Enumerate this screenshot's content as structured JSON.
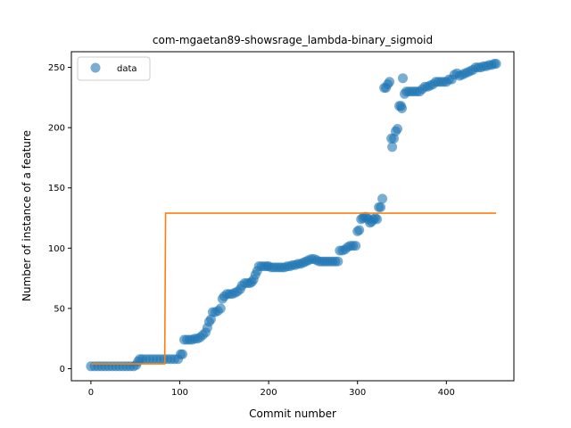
{
  "chart_data": {
    "type": "scatter",
    "title": "com-mgaetan89-showsrage_lambda-binary_sigmoid",
    "xlabel": "Commit number",
    "ylabel": "Number of instance of a feature",
    "xlim": [
      -22,
      476
    ],
    "ylim": [
      -10,
      263
    ],
    "xticks": [
      0,
      100,
      200,
      300,
      400
    ],
    "yticks": [
      0,
      50,
      100,
      150,
      200,
      250
    ],
    "grid": false,
    "legend": {
      "placement": "top-left",
      "entries": [
        "data"
      ]
    },
    "colors": {
      "data": "#1f77b4",
      "fit": "#ff7f0e"
    },
    "series": [
      {
        "name": "data",
        "kind": "scatter",
        "points": [
          [
            0,
            2
          ],
          [
            4,
            2
          ],
          [
            8,
            2
          ],
          [
            12,
            2
          ],
          [
            16,
            2
          ],
          [
            20,
            2
          ],
          [
            24,
            2
          ],
          [
            28,
            2
          ],
          [
            32,
            2
          ],
          [
            36,
            2
          ],
          [
            40,
            2
          ],
          [
            44,
            2
          ],
          [
            48,
            2
          ],
          [
            51,
            3
          ],
          [
            53,
            6
          ],
          [
            55,
            8
          ],
          [
            58,
            8
          ],
          [
            62,
            8
          ],
          [
            66,
            8
          ],
          [
            70,
            8
          ],
          [
            74,
            8
          ],
          [
            78,
            8
          ],
          [
            82,
            8
          ],
          [
            86,
            8
          ],
          [
            90,
            8
          ],
          [
            94,
            8
          ],
          [
            98,
            8
          ],
          [
            101,
            12
          ],
          [
            103,
            12
          ],
          [
            105,
            24
          ],
          [
            108,
            24
          ],
          [
            111,
            24
          ],
          [
            114,
            24
          ],
          [
            117,
            25
          ],
          [
            120,
            25
          ],
          [
            123,
            26
          ],
          [
            126,
            28
          ],
          [
            129,
            30
          ],
          [
            131,
            34
          ],
          [
            133,
            39
          ],
          [
            135,
            41
          ],
          [
            137,
            47
          ],
          [
            140,
            47
          ],
          [
            143,
            48
          ],
          [
            146,
            50
          ],
          [
            148,
            58
          ],
          [
            150,
            60
          ],
          [
            153,
            62
          ],
          [
            156,
            62
          ],
          [
            159,
            62
          ],
          [
            162,
            63
          ],
          [
            165,
            64
          ],
          [
            168,
            66
          ],
          [
            170,
            69
          ],
          [
            173,
            71
          ],
          [
            176,
            71
          ],
          [
            179,
            71
          ],
          [
            181,
            72
          ],
          [
            183,
            74
          ],
          [
            185,
            78
          ],
          [
            187,
            81
          ],
          [
            189,
            85
          ],
          [
            192,
            85
          ],
          [
            195,
            85
          ],
          [
            198,
            85
          ],
          [
            200,
            85
          ],
          [
            203,
            84
          ],
          [
            206,
            84
          ],
          [
            209,
            84
          ],
          [
            212,
            84
          ],
          [
            215,
            84
          ],
          [
            218,
            84
          ],
          [
            221,
            85
          ],
          [
            224,
            85
          ],
          [
            227,
            86
          ],
          [
            230,
            86
          ],
          [
            233,
            87
          ],
          [
            236,
            87
          ],
          [
            239,
            88
          ],
          [
            242,
            89
          ],
          [
            245,
            90
          ],
          [
            248,
            91
          ],
          [
            251,
            91
          ],
          [
            254,
            90
          ],
          [
            257,
            89
          ],
          [
            260,
            89
          ],
          [
            263,
            89
          ],
          [
            266,
            89
          ],
          [
            269,
            89
          ],
          [
            272,
            89
          ],
          [
            275,
            89
          ],
          [
            278,
            89
          ],
          [
            280,
            98
          ],
          [
            283,
            98
          ],
          [
            286,
            99
          ],
          [
            289,
            101
          ],
          [
            292,
            102
          ],
          [
            295,
            102
          ],
          [
            298,
            102
          ],
          [
            300,
            114
          ],
          [
            302,
            115
          ],
          [
            304,
            124
          ],
          [
            306,
            125
          ],
          [
            308,
            126
          ],
          [
            310,
            126
          ],
          [
            312,
            124
          ],
          [
            314,
            121
          ],
          [
            316,
            122
          ],
          [
            318,
            124
          ],
          [
            320,
            125
          ],
          [
            322,
            124
          ],
          [
            324,
            134
          ],
          [
            326,
            134
          ],
          [
            328,
            141
          ],
          [
            330,
            233
          ],
          [
            332,
            233
          ],
          [
            334,
            236
          ],
          [
            336,
            238
          ],
          [
            338,
            191
          ],
          [
            339,
            184
          ],
          [
            341,
            191
          ],
          [
            343,
            197
          ],
          [
            345,
            199
          ],
          [
            347,
            218
          ],
          [
            349,
            218
          ],
          [
            350,
            216
          ],
          [
            351,
            241
          ],
          [
            353,
            228
          ],
          [
            355,
            230
          ],
          [
            358,
            230
          ],
          [
            361,
            230
          ],
          [
            364,
            230
          ],
          [
            367,
            230
          ],
          [
            370,
            230
          ],
          [
            373,
            232
          ],
          [
            376,
            234
          ],
          [
            379,
            234
          ],
          [
            382,
            235
          ],
          [
            385,
            236
          ],
          [
            388,
            238
          ],
          [
            391,
            238
          ],
          [
            394,
            238
          ],
          [
            397,
            238
          ],
          [
            400,
            238
          ],
          [
            403,
            240
          ],
          [
            406,
            240
          ],
          [
            409,
            244
          ],
          [
            412,
            245
          ],
          [
            415,
            243
          ],
          [
            418,
            244
          ],
          [
            421,
            245
          ],
          [
            424,
            246
          ],
          [
            427,
            247
          ],
          [
            430,
            248
          ],
          [
            433,
            250
          ],
          [
            436,
            250
          ],
          [
            439,
            250
          ],
          [
            442,
            251
          ],
          [
            445,
            251
          ],
          [
            448,
            252
          ],
          [
            451,
            252
          ],
          [
            454,
            253
          ],
          [
            456,
            253
          ]
        ]
      },
      {
        "name": "",
        "kind": "line",
        "points": [
          [
            0,
            4
          ],
          [
            83,
            4
          ],
          [
            84,
            129
          ],
          [
            456,
            129
          ]
        ]
      }
    ]
  }
}
